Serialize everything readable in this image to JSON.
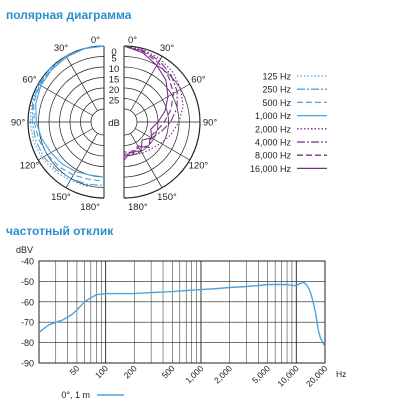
{
  "polar": {
    "title": "полярная диаграмма",
    "angle_labels": [
      "0°",
      "30°",
      "60°",
      "90°",
      "120°",
      "150°",
      "180°"
    ],
    "db_ticks": [
      "0",
      "5",
      "10",
      "15",
      "20",
      "25"
    ],
    "db_unit": "dB"
  },
  "frequency": {
    "title": "частотный отклик"
  },
  "colors": {
    "title": "#2b8fcf",
    "light_blue": "#4fa3dc",
    "purple": "#7a2d8f",
    "grid": "#222222"
  },
  "chart_data": [
    {
      "type": "polar",
      "title": "полярная диаграмма",
      "unit": "dB",
      "r_ticks": [
        0,
        5,
        10,
        15,
        20,
        25
      ],
      "r_range": [
        0,
        30
      ],
      "angle_ticks_deg": [
        0,
        30,
        60,
        90,
        120,
        150,
        180
      ],
      "angles_deg": [
        0,
        15,
        30,
        45,
        60,
        75,
        90,
        105,
        120,
        135,
        150,
        165,
        180
      ],
      "legend_position": "right",
      "series": [
        {
          "name": "125 Hz",
          "color": "#4fa3dc",
          "dash": "1.5,2",
          "side": "left",
          "attenuation_db": [
            0,
            0,
            0,
            0,
            0,
            0.5,
            1,
            1.5,
            2,
            3,
            4,
            4.5,
            5
          ]
        },
        {
          "name": "250 Hz",
          "color": "#4fa3dc",
          "dash": "8,2,2,2",
          "side": "left",
          "attenuation_db": [
            0,
            0,
            0,
            0,
            0.5,
            1,
            2,
            2.5,
            3,
            4,
            5,
            5.5,
            6
          ]
        },
        {
          "name": "500 Hz",
          "color": "#4fa3dc",
          "dash": "6,3",
          "side": "left",
          "attenuation_db": [
            0,
            0,
            0,
            0.5,
            1,
            1.5,
            3,
            4,
            5,
            6,
            7,
            8,
            8
          ]
        },
        {
          "name": "1,000 Hz",
          "color": "#4fa3dc",
          "dash": "",
          "side": "left",
          "attenuation_db": [
            0,
            0,
            0.5,
            1,
            1.5,
            2.5,
            4,
            5.5,
            7,
            8,
            9,
            10,
            10
          ]
        },
        {
          "name": "2,000 Hz",
          "color": "#7a2d8f",
          "dash": "1.5,2",
          "side": "right",
          "attenuation_db": [
            0,
            0.5,
            1.5,
            3,
            5,
            7,
            10,
            13,
            16,
            18,
            19,
            20,
            20
          ]
        },
        {
          "name": "4,000 Hz",
          "color": "#7a2d8f",
          "dash": "8,2,2,2",
          "side": "right",
          "attenuation_db": [
            0,
            1,
            2.5,
            4.5,
            7,
            10,
            14,
            18,
            21,
            20,
            22,
            21,
            22
          ]
        },
        {
          "name": "8,000 Hz",
          "color": "#7a2d8f",
          "dash": "6,3",
          "side": "right",
          "attenuation_db": [
            0,
            1.5,
            3.5,
            6,
            9,
            13,
            17,
            20,
            22,
            19,
            23,
            20,
            21
          ]
        },
        {
          "name": "16,000 Hz",
          "color": "#7a2d8f",
          "dash": "",
          "side": "right",
          "attenuation_db": [
            0,
            2,
            5,
            8,
            12,
            16,
            20,
            23,
            21,
            24,
            20,
            22,
            18
          ]
        }
      ]
    },
    {
      "type": "line",
      "title": "частотный отклик",
      "ylabel": "dBV",
      "xlabel": "Hz",
      "xscale": "log",
      "xlim": [
        20,
        20000
      ],
      "ylim": [
        -90,
        -40
      ],
      "y_ticks": [
        -40,
        -50,
        -60,
        -70,
        -80,
        -90
      ],
      "x_tick_labels": [
        {
          "value": 50,
          "label": "50"
        },
        {
          "value": 100,
          "label": "100"
        },
        {
          "value": 200,
          "label": "200"
        },
        {
          "value": 500,
          "label": "500"
        },
        {
          "value": 1000,
          "label": "1,000"
        },
        {
          "value": 2000,
          "label": "2,000"
        },
        {
          "value": 5000,
          "label": "5,000"
        },
        {
          "value": 10000,
          "label": "10,000"
        },
        {
          "value": 20000,
          "label": "20,000"
        }
      ],
      "grid": true,
      "legend_position": "bottom-left",
      "series": [
        {
          "name": "0°, 1 m",
          "color": "#4fa3dc",
          "x": [
            20,
            22,
            25,
            30,
            35,
            40,
            45,
            50,
            60,
            70,
            80,
            100,
            150,
            200,
            300,
            500,
            700,
            1000,
            1500,
            2000,
            3000,
            4000,
            5000,
            6000,
            7000,
            8000,
            9000,
            10000,
            11000,
            12000,
            13000,
            14000,
            15000,
            16000,
            17000,
            18000,
            19000,
            20000
          ],
          "y": [
            -75,
            -73.5,
            -71.5,
            -70,
            -69,
            -67.5,
            -66,
            -64,
            -60,
            -58,
            -56.5,
            -56,
            -56,
            -56,
            -55.5,
            -55,
            -54.5,
            -54,
            -53.5,
            -53,
            -52.5,
            -52,
            -51.5,
            -51.5,
            -51.5,
            -51.5,
            -52,
            -52,
            -51,
            -50.5,
            -52,
            -55,
            -60,
            -66,
            -74,
            -78,
            -80,
            -82
          ]
        }
      ]
    }
  ]
}
